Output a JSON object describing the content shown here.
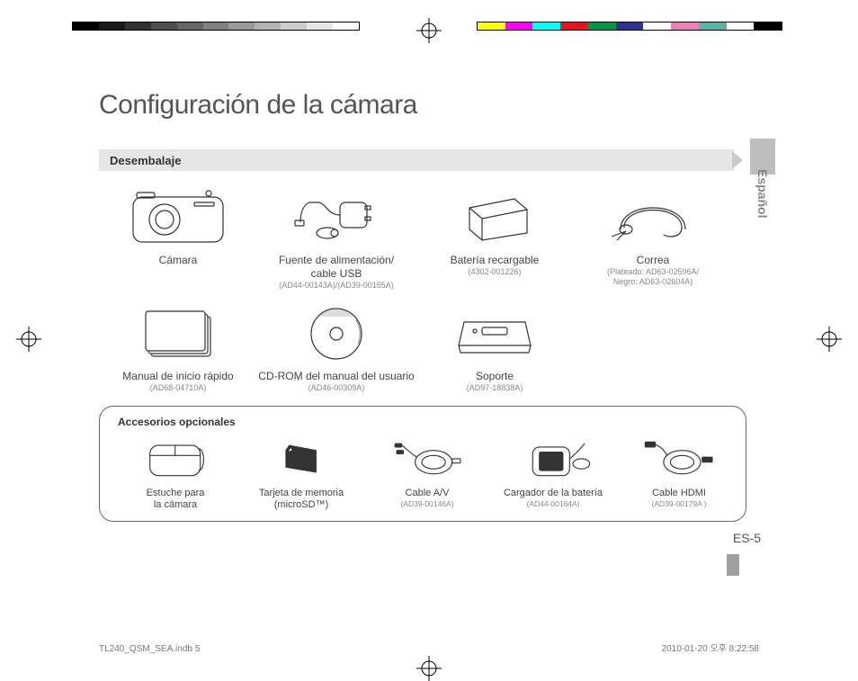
{
  "printerMarks": {
    "grayShades": [
      "#000000",
      "#1a1a1a",
      "#333333",
      "#4d4d4d",
      "#666666",
      "#808080",
      "#999999",
      "#b3b3b3",
      "#cccccc",
      "#e6e6e6",
      "#ffffff"
    ],
    "colors": [
      "#ffff00",
      "#ff00ff",
      "#00ffff",
      "#ea131e",
      "#009846",
      "#2e3192",
      "#ffffff",
      "#ee82b6",
      "#56b5a5",
      "#ffffff",
      "#000000"
    ]
  },
  "heading": "Configuración de la cámara",
  "section": {
    "label": "Desembalaje"
  },
  "langTab": "Español",
  "row1": [
    {
      "label": "Cámara",
      "part": ""
    },
    {
      "label": "Fuente de alimentación/\ncable USB",
      "part": "(AD44-00143A)/(AD39-00165A)"
    },
    {
      "label": "Batería recargable",
      "part": "(4302-001226)"
    },
    {
      "label": "Correa",
      "part": "(Plateado: AD63-02596A/\nNegro: AD63-02604A)"
    }
  ],
  "row2": [
    {
      "label": "Manual de inicio rápido",
      "part": "(AD68-04710A)"
    },
    {
      "label": "CD-ROM del manual del usuario",
      "part": "(AD46-00309A)"
    },
    {
      "label": "Soporte",
      "part": "(AD97-18838A)"
    }
  ],
  "optional": {
    "title": "Accesorios opcionales",
    "items": [
      {
        "label": "Estuche para\nla cámara",
        "part": ""
      },
      {
        "label": "Tarjeta de memoria\n(microSD™)",
        "part": ""
      },
      {
        "label": "Cable A/V",
        "part": "(AD39-00146A)"
      },
      {
        "label": "Cargador de la batería",
        "part": "(AD44-00164A)"
      },
      {
        "label": "Cable HDMI",
        "part": "(AD39-00179A )"
      }
    ]
  },
  "pageNumber": "ES-5",
  "footer": {
    "left": "TL240_QSM_SEA.indb   5",
    "right": "2010-01-20   오후 8:22:58"
  }
}
